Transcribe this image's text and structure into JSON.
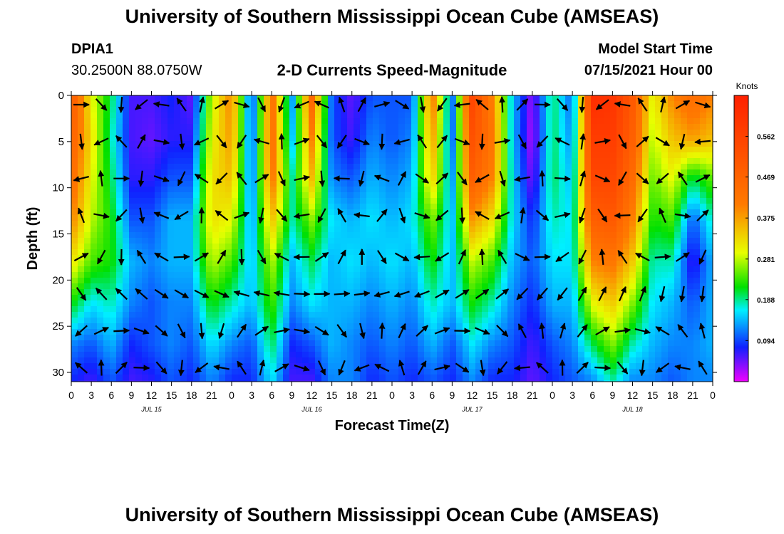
{
  "header": {
    "title": "University of Southern Mississippi Ocean Cube (AMSEAS)",
    "station_id": "DPIA1",
    "station_coords": "30.2500N  88.0750W",
    "subtitle": "2-D Currents Speed-Magnitude",
    "model_start_label": "Model Start Time",
    "model_start_value": "07/15/2021 Hour 00"
  },
  "footer": {
    "title": "University of Southern Mississippi Ocean Cube (AMSEAS)"
  },
  "colors": {
    "max": "#ff2000",
    "orange": "#ff7a00",
    "yellow": "#e8ff00",
    "green": "#00e000",
    "cyan": "#00f0ff",
    "blue": "#1020ff",
    "min": "#f000ff"
  },
  "chart_data": {
    "type": "heatmap",
    "xlabel": "Forecast Time(Z)",
    "ylabel": "Depth (ft)",
    "xlim": [
      0,
      96
    ],
    "ylim": [
      31,
      0
    ],
    "x_tick_labels": [
      "0",
      "3",
      "6",
      "9",
      "12",
      "15",
      "18",
      "21",
      "0",
      "3",
      "6",
      "9",
      "12",
      "15",
      "18",
      "21",
      "0",
      "3",
      "6",
      "9",
      "12",
      "15",
      "18",
      "21",
      "0",
      "3",
      "6",
      "9",
      "12",
      "15",
      "18",
      "21",
      "0"
    ],
    "y_ticks": [
      0,
      5,
      10,
      15,
      20,
      25,
      30
    ],
    "day_labels": [
      {
        "text": "JUL 15",
        "hour": 12
      },
      {
        "text": "JUL 16",
        "hour": 36
      },
      {
        "text": "JUL 17",
        "hour": 60
      },
      {
        "text": "JUL 18",
        "hour": 84
      }
    ],
    "colorbar": {
      "unit": "Knots",
      "min": 0,
      "max": 0.656,
      "ticks": [
        0.094,
        0.188,
        0.281,
        0.375,
        0.469,
        0.562
      ]
    },
    "speed_profiles_knots": [
      [
        0.5,
        0.3,
        0.2,
        0.06,
        0.06,
        0.08,
        0.05,
        0.28,
        0.4,
        0.08,
        0.44,
        0.12,
        0.46,
        0.1,
        0.05,
        0.1,
        0.1,
        0.1,
        0.42,
        0.1,
        0.55,
        0.4,
        0.15,
        0.03,
        0.2,
        0.1,
        0.62,
        0.6,
        0.5,
        0.3,
        0.4,
        0.45,
        0.4
      ],
      [
        0.48,
        0.32,
        0.18,
        0.06,
        0.05,
        0.07,
        0.07,
        0.3,
        0.38,
        0.09,
        0.44,
        0.14,
        0.4,
        0.1,
        0.06,
        0.12,
        0.1,
        0.12,
        0.38,
        0.1,
        0.52,
        0.42,
        0.15,
        0.02,
        0.2,
        0.12,
        0.58,
        0.58,
        0.48,
        0.28,
        0.35,
        0.38,
        0.35
      ],
      [
        0.45,
        0.3,
        0.2,
        0.07,
        0.07,
        0.1,
        0.1,
        0.32,
        0.35,
        0.1,
        0.42,
        0.18,
        0.35,
        0.12,
        0.1,
        0.14,
        0.12,
        0.14,
        0.34,
        0.12,
        0.48,
        0.4,
        0.16,
        0.04,
        0.2,
        0.14,
        0.55,
        0.55,
        0.45,
        0.25,
        0.3,
        0.2,
        0.25
      ],
      [
        0.4,
        0.28,
        0.22,
        0.1,
        0.1,
        0.14,
        0.14,
        0.32,
        0.3,
        0.12,
        0.35,
        0.18,
        0.26,
        0.16,
        0.14,
        0.16,
        0.14,
        0.16,
        0.26,
        0.14,
        0.38,
        0.32,
        0.16,
        0.08,
        0.18,
        0.16,
        0.48,
        0.5,
        0.4,
        0.22,
        0.24,
        0.1,
        0.18
      ],
      [
        0.32,
        0.24,
        0.22,
        0.14,
        0.12,
        0.14,
        0.14,
        0.28,
        0.24,
        0.14,
        0.28,
        0.14,
        0.2,
        0.14,
        0.16,
        0.14,
        0.16,
        0.14,
        0.22,
        0.14,
        0.28,
        0.24,
        0.14,
        0.1,
        0.16,
        0.16,
        0.4,
        0.42,
        0.34,
        0.18,
        0.18,
        0.06,
        0.14
      ],
      [
        0.22,
        0.16,
        0.18,
        0.12,
        0.1,
        0.12,
        0.12,
        0.22,
        0.18,
        0.14,
        0.24,
        0.12,
        0.16,
        0.14,
        0.14,
        0.12,
        0.14,
        0.12,
        0.18,
        0.14,
        0.22,
        0.18,
        0.12,
        0.08,
        0.14,
        0.14,
        0.3,
        0.34,
        0.26,
        0.16,
        0.14,
        0.1,
        0.14
      ],
      [
        0.12,
        0.1,
        0.14,
        0.08,
        0.1,
        0.12,
        0.1,
        0.16,
        0.12,
        0.1,
        0.2,
        0.08,
        0.1,
        0.14,
        0.12,
        0.1,
        0.12,
        0.1,
        0.14,
        0.1,
        0.16,
        0.12,
        0.1,
        0.06,
        0.1,
        0.12,
        0.2,
        0.26,
        0.18,
        0.14,
        0.12,
        0.12,
        0.14
      ],
      [
        0.08,
        0.06,
        0.1,
        0.06,
        0.07,
        0.1,
        0.08,
        0.12,
        0.08,
        0.08,
        0.16,
        0.06,
        0.06,
        0.12,
        0.12,
        0.08,
        0.1,
        0.08,
        0.1,
        0.08,
        0.12,
        0.08,
        0.08,
        0.05,
        0.08,
        0.1,
        0.12,
        0.18,
        0.12,
        0.12,
        0.1,
        0.12,
        0.12
      ]
    ],
    "profile_depths_ft": [
      0,
      4.5,
      9,
      13.5,
      18,
      22.5,
      27,
      31
    ]
  }
}
